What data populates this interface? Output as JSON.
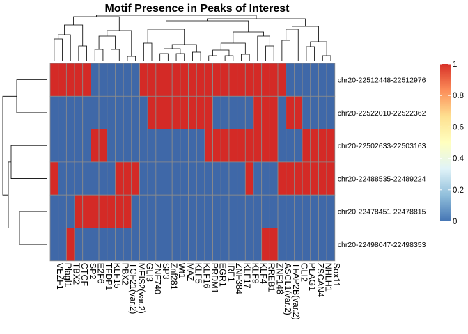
{
  "chart_data": {
    "type": "heatmap",
    "title": "Motif Presence in Peaks of Interest",
    "columns": [
      "VEZF1",
      "Plagl1",
      "TBX2",
      "CTCF",
      "SP2",
      "E2F6",
      "TFDP1",
      "KLF15",
      "PBX2",
      "TCF21(var.2)",
      "MEIS2(var.2)",
      "GLI3",
      "ZNF740",
      "SP3",
      "Znf281",
      "Wt1",
      "MAZ",
      "KLF5",
      "KLF16",
      "PRDM1",
      "EGR1",
      "IRF1",
      "ZNF384",
      "KLF17",
      "KLF9",
      "KLF4",
      "RREB1",
      "ZNF148",
      "ASCL1(var.2)",
      "TFAP2B(var.2)",
      "GLI2",
      "PLAG1",
      "ZSCAN4",
      "NHLH1",
      "Sox11"
    ],
    "rows": [
      "chr20-22512448-22512976",
      "chr20-22522010-22522362",
      "chr20-22502633-22503163",
      "chr20-22488535-22489224",
      "chr20-22478451-22478815",
      "chr20-22498047-22498353"
    ],
    "values": [
      [
        1,
        1,
        1,
        1,
        1,
        0,
        0,
        0,
        0,
        0,
        0,
        1,
        1,
        1,
        1,
        1,
        1,
        1,
        1,
        1,
        1,
        1,
        1,
        1,
        1,
        1,
        1,
        1,
        1,
        0,
        0,
        0,
        0,
        0,
        0
      ],
      [
        0,
        0,
        0,
        0,
        0,
        0,
        0,
        0,
        0,
        0,
        0,
        0,
        1,
        1,
        1,
        1,
        1,
        1,
        1,
        1,
        0,
        0,
        0,
        0,
        0,
        1,
        1,
        1,
        0,
        1,
        1,
        0,
        0,
        0,
        0
      ],
      [
        0,
        0,
        0,
        0,
        0,
        1,
        1,
        0,
        0,
        0,
        0,
        0,
        0,
        0,
        0,
        0,
        0,
        0,
        0,
        1,
        1,
        1,
        1,
        1,
        1,
        1,
        1,
        1,
        0,
        0,
        0,
        1,
        1,
        1,
        1
      ],
      [
        1,
        0,
        0,
        0,
        0,
        0,
        0,
        0,
        1,
        1,
        1,
        0,
        0,
        0,
        0,
        0,
        0,
        0,
        0,
        0,
        0,
        0,
        0,
        0,
        1,
        0,
        0,
        0,
        1,
        1,
        1,
        1,
        1,
        1,
        1
      ],
      [
        0,
        0,
        0,
        1,
        1,
        1,
        1,
        1,
        1,
        1,
        0,
        0,
        0,
        0,
        0,
        0,
        0,
        0,
        0,
        0,
        0,
        0,
        0,
        0,
        0,
        0,
        0,
        0,
        0,
        0,
        0,
        0,
        0,
        0,
        0
      ],
      [
        0,
        0,
        1,
        0,
        0,
        0,
        0,
        0,
        0,
        0,
        0,
        0,
        0,
        0,
        0,
        0,
        0,
        0,
        0,
        0,
        0,
        0,
        0,
        0,
        0,
        0,
        1,
        1,
        0,
        0,
        0,
        0,
        0,
        0,
        0
      ]
    ],
    "colorscale": {
      "colors": [
        "#4575b4",
        "#91bfdb",
        "#e0f3f8",
        "#ffffbf",
        "#fee090",
        "#fc8d59",
        "#d73027"
      ],
      "low": "#3f68a8",
      "high": "#d42a26",
      "grid": "#8c8c8c",
      "ticks": [
        "0",
        "0.2",
        "0.4",
        "0.6",
        "0.8",
        "1"
      ]
    },
    "legend_position": "right",
    "dendrograms": [
      "top",
      "left"
    ]
  }
}
